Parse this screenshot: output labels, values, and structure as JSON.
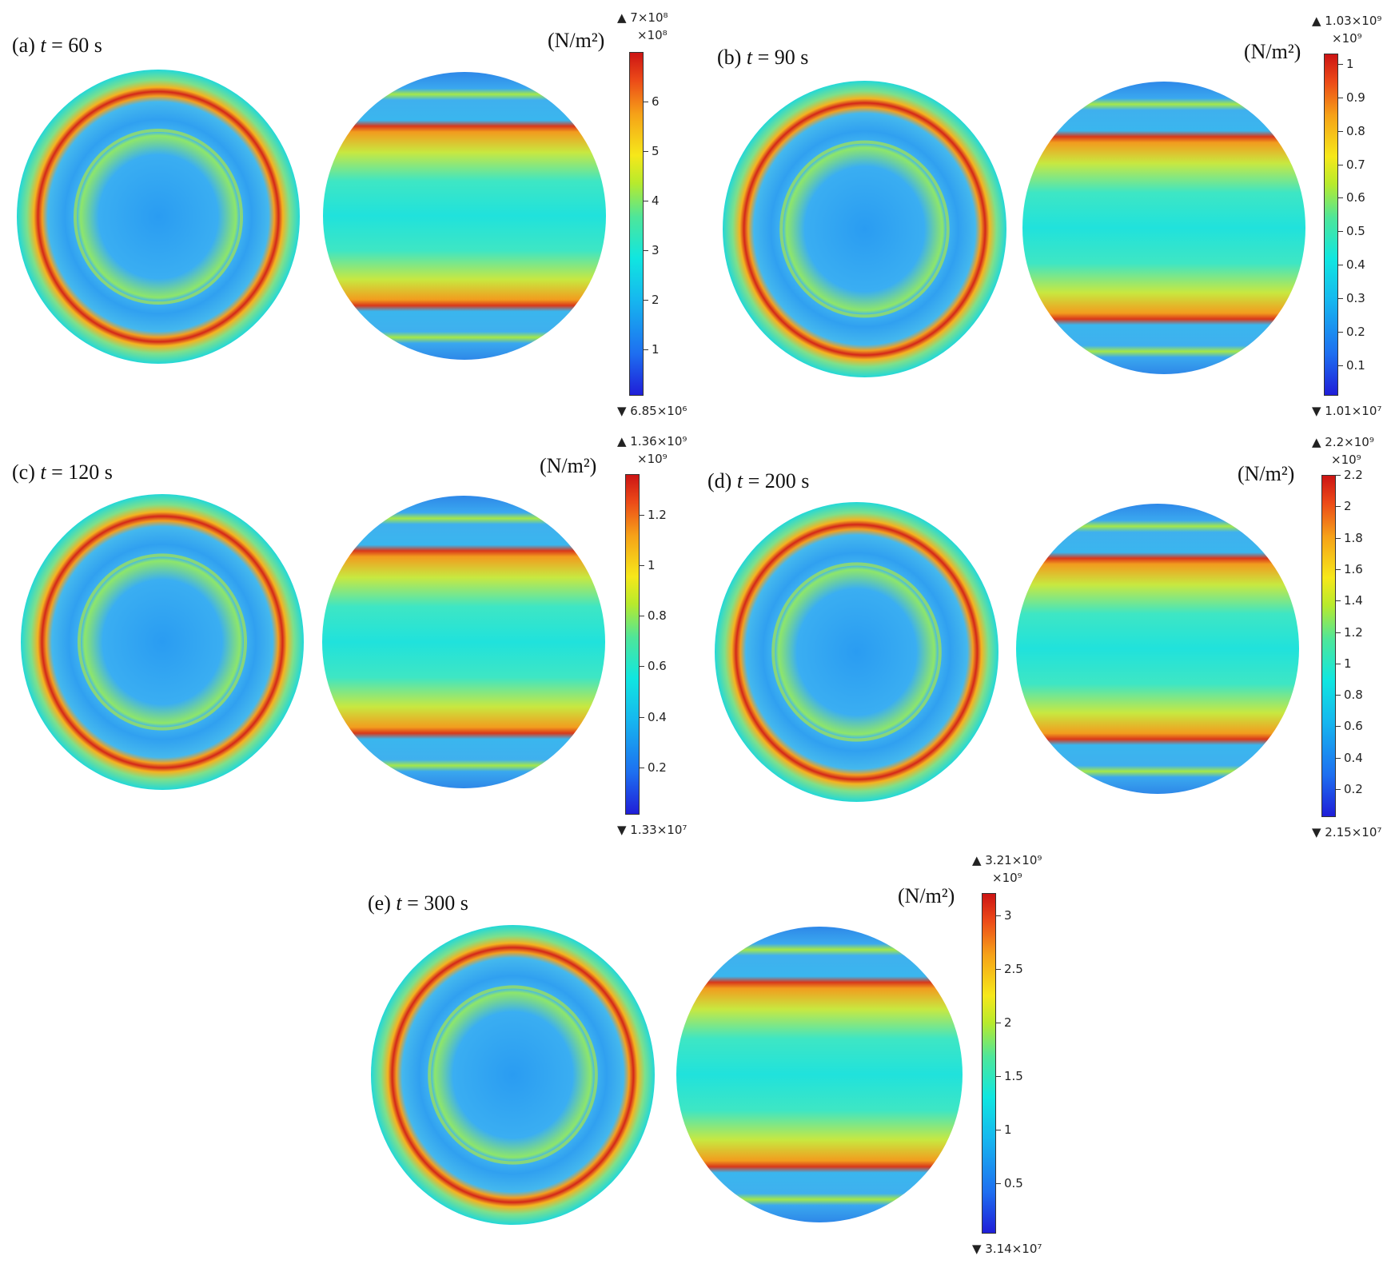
{
  "unit": "(N/m²)",
  "time_prefix": "t",
  "colors": {
    "stops": [
      "#1f1ed8",
      "#1e6ef0",
      "#16b8ef",
      "#10e6e0",
      "#4ee69a",
      "#b8ea2c",
      "#f6e81a",
      "#f6a218",
      "#ec4a18",
      "#cc1414"
    ]
  },
  "panels": [
    {
      "id": "a",
      "tag": "(a)",
      "time": "= 60 s",
      "exponent": "×10⁸",
      "max_label": "▲ 7×10⁸",
      "min_label": "▼ 6.85×10⁶",
      "scale": {
        "min": 0.0685,
        "max": 7.0
      },
      "ticks": [
        {
          "v": 1,
          "t": "1"
        },
        {
          "v": 2,
          "t": "2"
        },
        {
          "v": 3,
          "t": "3"
        },
        {
          "v": 4,
          "t": "4"
        },
        {
          "v": 5,
          "t": "5"
        },
        {
          "v": 6,
          "t": "6"
        }
      ]
    },
    {
      "id": "b",
      "tag": "(b)",
      "time": "= 90 s",
      "exponent": "×10⁹",
      "max_label": "▲ 1.03×10⁹",
      "min_label": "▼ 1.01×10⁷",
      "scale": {
        "min": 0.0101,
        "max": 1.03
      },
      "ticks": [
        {
          "v": 0.1,
          "t": "0.1"
        },
        {
          "v": 0.2,
          "t": "0.2"
        },
        {
          "v": 0.3,
          "t": "0.3"
        },
        {
          "v": 0.4,
          "t": "0.4"
        },
        {
          "v": 0.5,
          "t": "0.5"
        },
        {
          "v": 0.6,
          "t": "0.6"
        },
        {
          "v": 0.7,
          "t": "0.7"
        },
        {
          "v": 0.8,
          "t": "0.8"
        },
        {
          "v": 0.9,
          "t": "0.9"
        },
        {
          "v": 1,
          "t": "1"
        }
      ]
    },
    {
      "id": "c",
      "tag": "(c)",
      "time": "= 120 s",
      "exponent": "×10⁹",
      "max_label": "▲ 1.36×10⁹",
      "min_label": "▼ 1.33×10⁷",
      "scale": {
        "min": 0.0133,
        "max": 1.36
      },
      "ticks": [
        {
          "v": 0.2,
          "t": "0.2"
        },
        {
          "v": 0.4,
          "t": "0.4"
        },
        {
          "v": 0.6,
          "t": "0.6"
        },
        {
          "v": 0.8,
          "t": "0.8"
        },
        {
          "v": 1,
          "t": "1"
        },
        {
          "v": 1.2,
          "t": "1.2"
        }
      ]
    },
    {
      "id": "d",
      "tag": "(d)",
      "time": "= 200 s",
      "exponent": "×10⁹",
      "max_label": "▲ 2.2×10⁹",
      "min_label": "▼ 2.15×10⁷",
      "scale": {
        "min": 0.0215,
        "max": 2.2
      },
      "ticks": [
        {
          "v": 0.2,
          "t": "0.2"
        },
        {
          "v": 0.4,
          "t": "0.4"
        },
        {
          "v": 0.6,
          "t": "0.6"
        },
        {
          "v": 0.8,
          "t": "0.8"
        },
        {
          "v": 1,
          "t": "1"
        },
        {
          "v": 1.2,
          "t": "1.2"
        },
        {
          "v": 1.4,
          "t": "1.4"
        },
        {
          "v": 1.6,
          "t": "1.6"
        },
        {
          "v": 1.8,
          "t": "1.8"
        },
        {
          "v": 2,
          "t": "2"
        },
        {
          "v": 2.2,
          "t": "2.2"
        }
      ]
    },
    {
      "id": "e",
      "tag": "(e)",
      "time": "= 300 s",
      "exponent": "×10⁹",
      "max_label": "▲ 3.21×10⁹",
      "min_label": "▼ 3.14×10⁷",
      "scale": {
        "min": 0.0314,
        "max": 3.21
      },
      "ticks": [
        {
          "v": 0.5,
          "t": "0.5"
        },
        {
          "v": 1,
          "t": "1"
        },
        {
          "v": 1.5,
          "t": "1.5"
        },
        {
          "v": 2,
          "t": "2"
        },
        {
          "v": 2.5,
          "t": "2.5"
        },
        {
          "v": 3,
          "t": "3"
        }
      ]
    }
  ]
}
